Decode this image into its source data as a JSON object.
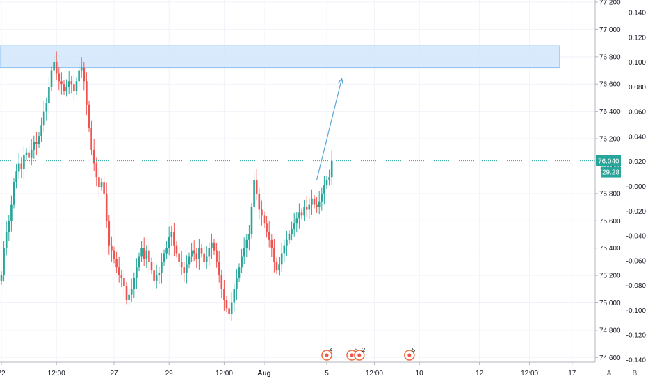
{
  "colors": {
    "up": "#26a69a",
    "down": "#ef5350",
    "grid": "#f0f3fa",
    "axis_text": "#131722",
    "zone_fill": "#cfe5fb",
    "zone_stroke": "#90c2f4",
    "arrow": "#5aa5d6",
    "price_tag": "#26a69a",
    "event_marker": "#ef6c3a"
  },
  "chart_data": {
    "type": "candlestick",
    "title": "",
    "ylim_price": [
      74.5,
      77.2
    ],
    "ylim_secondary": [
      -0.145,
      0.15
    ],
    "price_ticks": [
      "77.200",
      "77.000",
      "76.800",
      "76.600",
      "76.400",
      "76.200",
      "76.000",
      "75.800",
      "75.600",
      "75.400",
      "75.200",
      "75.000",
      "74.800",
      "74.600"
    ],
    "secondary_ticks": [
      "0.140",
      "0.120",
      "0.100",
      "0.080",
      "0.060",
      "0.040",
      "0.020",
      "-0.000",
      "-0.020",
      "-0.040",
      "-0.060",
      "-0.080",
      "-0.100",
      "-0.120",
      "-0.140"
    ],
    "time_labels": [
      "22",
      "12:00",
      "27",
      "29",
      "12:00",
      "Aug",
      "5",
      "12:00",
      "10",
      "12",
      "12:00",
      "17"
    ],
    "time_index": [
      0,
      22,
      45,
      67,
      89,
      105,
      130,
      149,
      167,
      191,
      211,
      228
    ],
    "candle_close": [
      75.2,
      75.4,
      75.52,
      75.6,
      75.72,
      75.88,
      75.96,
      76.02,
      75.98,
      76.08,
      76.1,
      76.06,
      76.12,
      76.18,
      76.16,
      76.22,
      76.3,
      76.4,
      76.46,
      76.58,
      76.7,
      76.76,
      76.68,
      76.62,
      76.6,
      76.55,
      76.58,
      76.62,
      76.6,
      76.55,
      76.62,
      76.7,
      76.72,
      76.62,
      76.45,
      76.28,
      76.12,
      76.02,
      75.92,
      75.85,
      75.88,
      75.8,
      75.6,
      75.42,
      75.38,
      75.32,
      75.26,
      75.2,
      75.18,
      75.12,
      75.02,
      75.06,
      75.1,
      75.18,
      75.26,
      75.34,
      75.4,
      75.32,
      75.38,
      75.3,
      75.24,
      75.16,
      75.2,
      75.22,
      75.3,
      75.36,
      75.4,
      75.48,
      75.52,
      75.42,
      75.36,
      75.3,
      75.26,
      75.22,
      75.28,
      75.34,
      75.38,
      75.36,
      75.32,
      75.4,
      75.36,
      75.3,
      75.34,
      75.4,
      75.44,
      75.38,
      75.3,
      75.2,
      75.1,
      75.02,
      74.96,
      74.92,
      75.0,
      75.1,
      75.18,
      75.26,
      75.34,
      75.4,
      75.46,
      75.5,
      75.7,
      75.9,
      75.8,
      75.68,
      75.64,
      75.58,
      75.52,
      75.46,
      75.4,
      75.3,
      75.24,
      75.28,
      75.36,
      75.42,
      75.46,
      75.5,
      75.54,
      75.58,
      75.62,
      75.66,
      75.64,
      75.7,
      75.68,
      75.72,
      75.76,
      75.72,
      75.7,
      75.74,
      75.8,
      75.86,
      75.9,
      75.92,
      76.04
    ],
    "current_price_label": "76.040",
    "countdown_label": "29:28",
    "zone": {
      "price_low": 76.72,
      "price_high": 76.88,
      "index_start": 0,
      "index_end": 223
    },
    "projection": {
      "index_start": 126,
      "price_start": 75.9,
      "index_end": 136,
      "price_end": 76.64
    },
    "event_markers": [
      {
        "index": 130,
        "count": "4"
      },
      {
        "index": 140,
        "count": "5"
      },
      {
        "index": 143,
        "count": "2"
      },
      {
        "index": 163,
        "count": "5"
      }
    ],
    "scale_buttons": [
      "A",
      "B"
    ]
  }
}
